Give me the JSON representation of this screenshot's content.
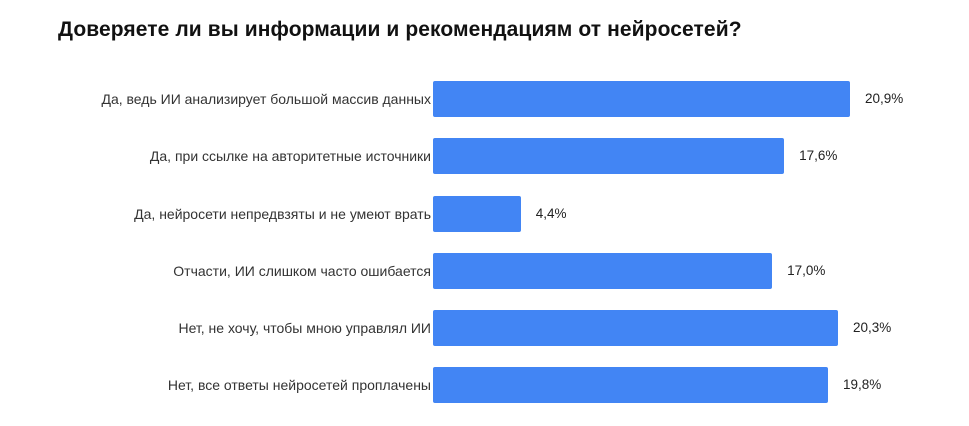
{
  "title": "Доверяете ли вы информации и рекомендациям от нейросетей?",
  "colors": {
    "bar": "#4285f4",
    "title": "#111111",
    "label": "#333333"
  },
  "rows": [
    {
      "label": "Да, ведь ИИ анализирует большой массив данных",
      "value": 20.9,
      "value_label": "20,9%"
    },
    {
      "label": "Да, при ссылке на авторитетные источники",
      "value": 17.6,
      "value_label": "17,6%"
    },
    {
      "label": "Да, нейросети непредвзяты и не умеют врать",
      "value": 4.4,
      "value_label": "4,4%"
    },
    {
      "label": "Отчасти, ИИ слишком часто ошибается",
      "value": 17.0,
      "value_label": "17,0%"
    },
    {
      "label": "Нет, не хочу, чтобы мною управлял ИИ",
      "value": 20.3,
      "value_label": "20,3%"
    },
    {
      "label": "Нет, все ответы нейросетей проплачены",
      "value": 19.8,
      "value_label": "19,8%"
    }
  ],
  "chart_data": {
    "type": "bar",
    "orientation": "horizontal",
    "title": "Доверяете ли вы информации и рекомендациям от нейросетей?",
    "categories": [
      "Да, ведь ИИ анализирует большой массив данных",
      "Да, при ссылке на авторитетные источники",
      "Да, нейросети непредвзяты и не умеют врать",
      "Отчасти, ИИ слишком часто ошибается",
      "Нет, не хочу, чтобы мною управлял ИИ",
      "Нет, все ответы нейросетей проплачены"
    ],
    "values": [
      20.9,
      17.6,
      4.4,
      17.0,
      20.3,
      19.8
    ],
    "data_labels": [
      "20,9%",
      "17,6%",
      "4,4%",
      "17,0%",
      "20,3%",
      "19,8%"
    ],
    "xlabel": "",
    "ylabel": "",
    "unit": "%",
    "grid": false,
    "legend": false
  }
}
